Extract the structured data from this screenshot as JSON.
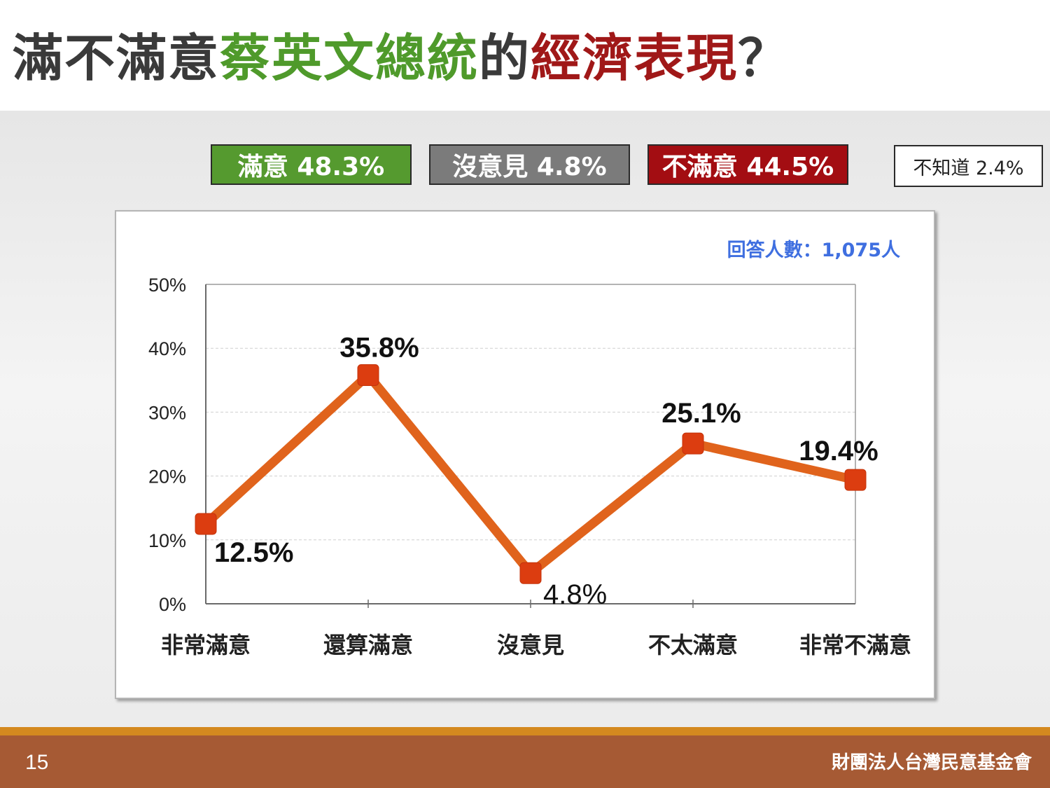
{
  "title": {
    "part1": "滿不滿意",
    "part2": "蔡英文總統",
    "part3": "的",
    "part4": "經濟表現",
    "part5": "？"
  },
  "summary": {
    "satisfied": "滿意 48.3%",
    "no_opinion": "沒意見 4.8%",
    "dissatisfied": "不滿意 44.5%",
    "dont_know": "不知道 2.4%"
  },
  "colors": {
    "satisfied": "#559a2f",
    "no_opinion": "#7b7b7b",
    "dissatisfied": "#a30d12",
    "line": "#e0631c",
    "marker": "#dc3d10",
    "note": "#3f6fe0"
  },
  "chart_data": {
    "type": "line",
    "categories": [
      "非常滿意",
      "還算滿意",
      "沒意見",
      "不太滿意",
      "非常不滿意"
    ],
    "values": [
      12.5,
      35.8,
      4.8,
      25.1,
      19.4
    ],
    "data_labels": [
      "12.5%",
      "35.8%",
      "4.8%",
      "25.1%",
      "19.4%"
    ],
    "y_ticks": [
      "0%",
      "10%",
      "20%",
      "30%",
      "40%",
      "50%"
    ],
    "ylim": [
      0,
      50
    ],
    "grid": true,
    "note": "回答人數：1,075人"
  },
  "footer": {
    "page_number": "15",
    "organization": "財團法人台灣民意基金會"
  }
}
